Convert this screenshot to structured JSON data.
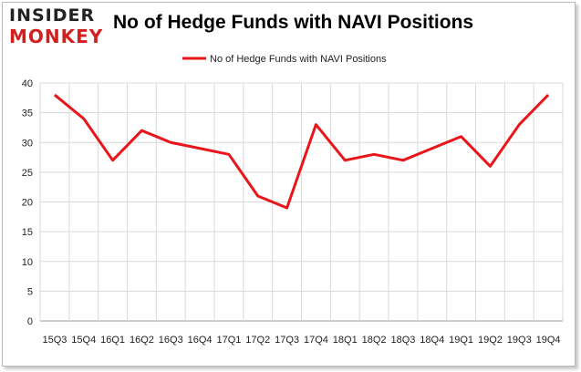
{
  "header": {
    "logo_line1": "INSIDER",
    "logo_line2": "MONKEY",
    "title": "No of Hedge Funds with NAVI Positions"
  },
  "chart_data": {
    "type": "line",
    "title": "No of Hedge Funds with NAVI Positions",
    "xlabel": "",
    "ylabel": "",
    "categories": [
      "15Q3",
      "15Q4",
      "16Q1",
      "16Q2",
      "16Q3",
      "16Q4",
      "17Q1",
      "17Q2",
      "17Q3",
      "17Q4",
      "18Q1",
      "18Q2",
      "18Q3",
      "18Q4",
      "19Q1",
      "19Q2",
      "19Q3",
      "19Q4"
    ],
    "series": [
      {
        "name": "No of Hedge Funds with NAVI Positions",
        "color": "#e8161b",
        "values": [
          38,
          34,
          27,
          32,
          30,
          29,
          28,
          21,
          19,
          33,
          27,
          28,
          27,
          29,
          31,
          26,
          33,
          38
        ]
      }
    ],
    "ylim": [
      0,
      40
    ],
    "yticks": [
      0,
      5,
      10,
      15,
      20,
      25,
      30,
      35,
      40
    ],
    "grid": true,
    "legend": "top-center"
  }
}
